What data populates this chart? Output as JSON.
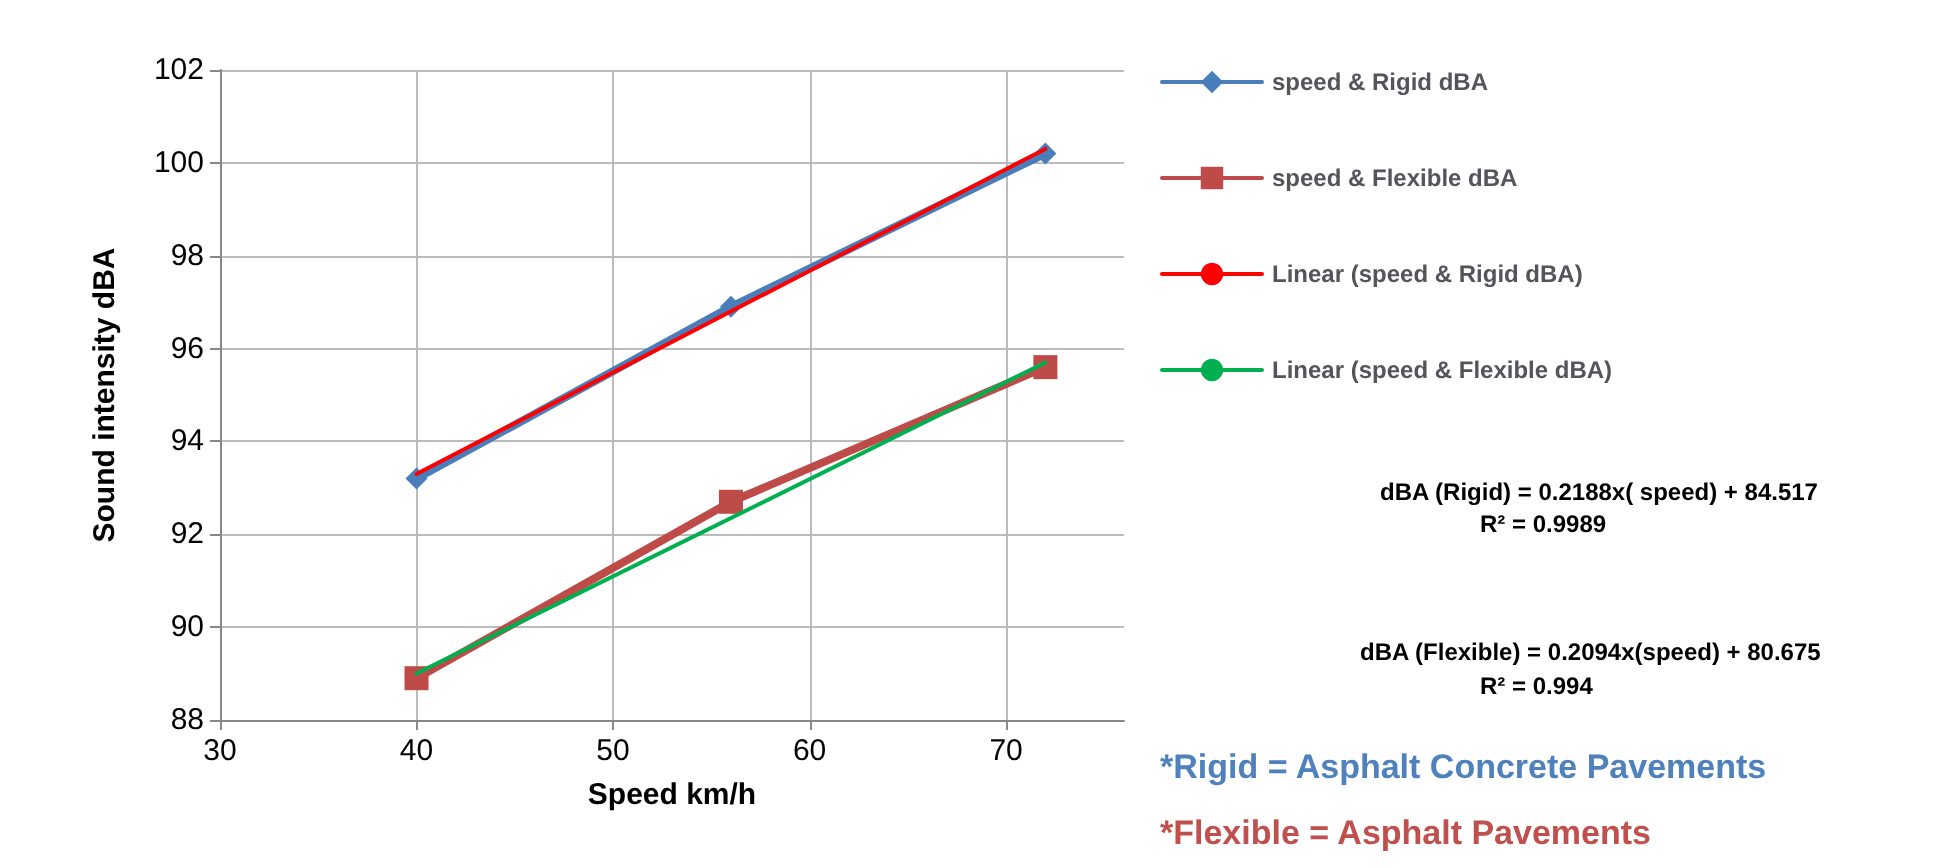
{
  "chart_data": {
    "type": "line",
    "xlabel": "Speed km/h",
    "ylabel": "Sound intensity dBA",
    "xlim": [
      30,
      76
    ],
    "xticks": [
      30,
      40,
      50,
      60,
      70
    ],
    "ylim": [
      88,
      102
    ],
    "yticks": [
      88,
      90,
      92,
      94,
      96,
      98,
      100,
      102
    ],
    "grid": true,
    "legend": "right",
    "series": [
      {
        "name": "speed & Rigid dBA",
        "color": "#4a7ebb",
        "marker": "diamond",
        "x": [
          40,
          56,
          72
        ],
        "values": [
          93.2,
          96.9,
          100.2
        ]
      },
      {
        "name": "speed & Flexible dBA",
        "color": "#be4b48",
        "marker": "square",
        "x": [
          40,
          56,
          72
        ],
        "values": [
          88.9,
          92.7,
          95.6
        ]
      },
      {
        "name": "Linear (speed & Rigid dBA)",
        "color": "#ff0000",
        "marker": "none",
        "x": [
          40,
          72
        ],
        "values": [
          93.3,
          100.3
        ]
      },
      {
        "name": "Linear (speed & Flexible dBA)",
        "color": "#00b050",
        "marker": "none",
        "x": [
          40,
          72
        ],
        "values": [
          89.0,
          95.7
        ]
      }
    ],
    "annotations": [
      "dBA (Rigid) = 0.2188x( speed) + 84.517",
      "R² = 0.9989",
      "dBA (Flexible) = 0.2094x(speed) + 80.675",
      "R² = 0.994",
      "*Rigid = Asphalt Concrete Pavements",
      "*Flexible = Asphalt Pavements"
    ]
  }
}
